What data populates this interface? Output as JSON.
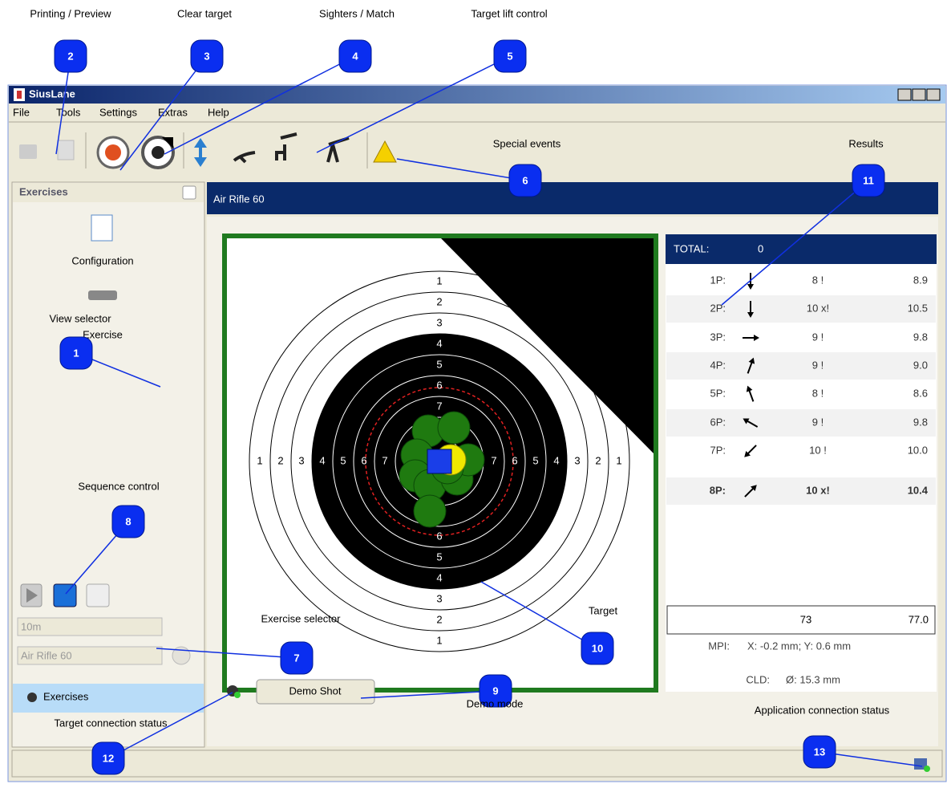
{
  "window": {
    "title": "SiusLane",
    "menu": [
      "File",
      "Tools",
      "Settings",
      "Extras",
      "Help"
    ]
  },
  "sidebar": {
    "header": "Exercises",
    "items": [
      "Configuration",
      "Exercise"
    ],
    "range": "10m",
    "exercise": "Air Rifle 60",
    "tab": "Exercises"
  },
  "main": {
    "title": "Air Rifle 60",
    "ring_labels": [
      1,
      2,
      3,
      4,
      5,
      6,
      7
    ],
    "demo_button": "Demo Shot"
  },
  "results": {
    "total_label": "TOTAL:",
    "total": 0,
    "shots": [
      {
        "shot": "1P:",
        "score": "8 !",
        "value": "8.9"
      },
      {
        "shot": "2P:",
        "score": "10 x!",
        "value": "10.5"
      },
      {
        "shot": "3P:",
        "score": "9 !",
        "value": "9.8"
      },
      {
        "shot": "4P:",
        "score": "9 !",
        "value": "9.0"
      },
      {
        "shot": "5P:",
        "score": "8 !",
        "value": "8.6"
      },
      {
        "shot": "6P:",
        "score": "9 !",
        "value": "9.8"
      },
      {
        "shot": "7P:",
        "score": "10 !",
        "value": "10.0"
      },
      {
        "shot": "8P:",
        "score": "10 x!",
        "value": "10.4"
      }
    ],
    "sum_score": 73,
    "sum_value": "77.0",
    "mpi_label": "MPI:",
    "mpi": "X: -0.2 mm; Y: 0.6 mm",
    "cld_label": "CLD:",
    "cld": "Ø: 15.3 mm"
  },
  "callouts": [
    {
      "number": 2,
      "label": "Printing / Preview"
    },
    {
      "number": 3,
      "label": "Clear target"
    },
    {
      "number": 4,
      "label": "Sighters / Match"
    },
    {
      "number": 5,
      "label": "Target lift control"
    },
    {
      "number": 6,
      "label": "Special events"
    },
    {
      "number": 11,
      "label": "Results"
    },
    {
      "number": 1,
      "label": "View selector"
    },
    {
      "number": 8,
      "label": "Sequence control"
    },
    {
      "number": 7,
      "label": "Exercise selector"
    },
    {
      "number": 10,
      "label": "Target"
    },
    {
      "number": 9,
      "label": "Demo mode"
    },
    {
      "number": 12,
      "label": "Target connection status"
    },
    {
      "number": 13,
      "label": "Application connection status"
    }
  ]
}
